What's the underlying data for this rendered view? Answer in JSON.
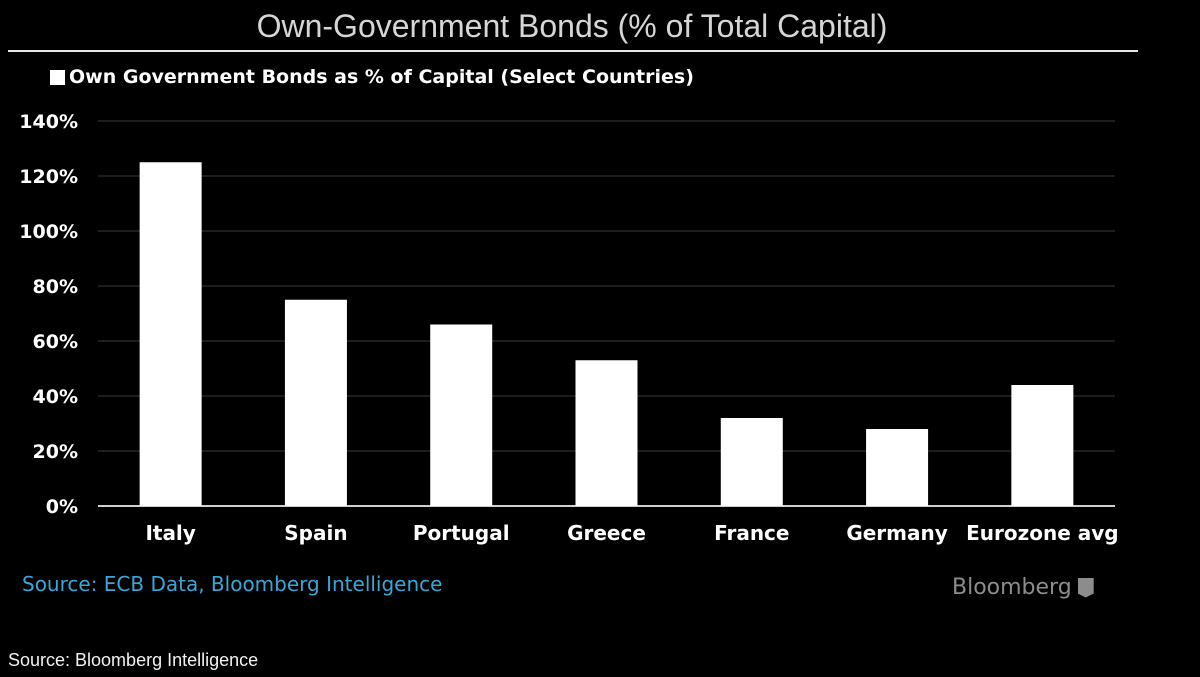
{
  "header": {
    "title": "Own-Government Bonds (% of Total Capital)"
  },
  "footer": {
    "source_inner": "Source: ECB Data, Bloomberg Intelligence",
    "brand": "Bloomberg",
    "source_outer": "Source: Bloomberg Intelligence"
  },
  "colors": {
    "background": "#000000",
    "bar": "#ffffff",
    "grid": "#3a3a3a",
    "source_link": "#3aa6d8"
  },
  "chart_data": {
    "type": "bar",
    "title": "",
    "xlabel": "",
    "ylabel": "",
    "categories": [
      "Italy",
      "Spain",
      "Portugal",
      "Greece",
      "France",
      "Germany",
      "Eurozone avg"
    ],
    "series": [
      {
        "name": "Own Government Bonds as % of Capital (Select Countries)",
        "values": [
          125,
          75,
          66,
          53,
          32,
          28,
          44
        ]
      }
    ],
    "ylim": [
      0,
      140
    ],
    "yticks": [
      0,
      20,
      40,
      60,
      80,
      100,
      120,
      140
    ],
    "ytick_labels": [
      "0%",
      "20%",
      "40%",
      "60%",
      "80%",
      "100%",
      "120%",
      "140%"
    ],
    "grid": true,
    "legend_position": "top-left"
  }
}
